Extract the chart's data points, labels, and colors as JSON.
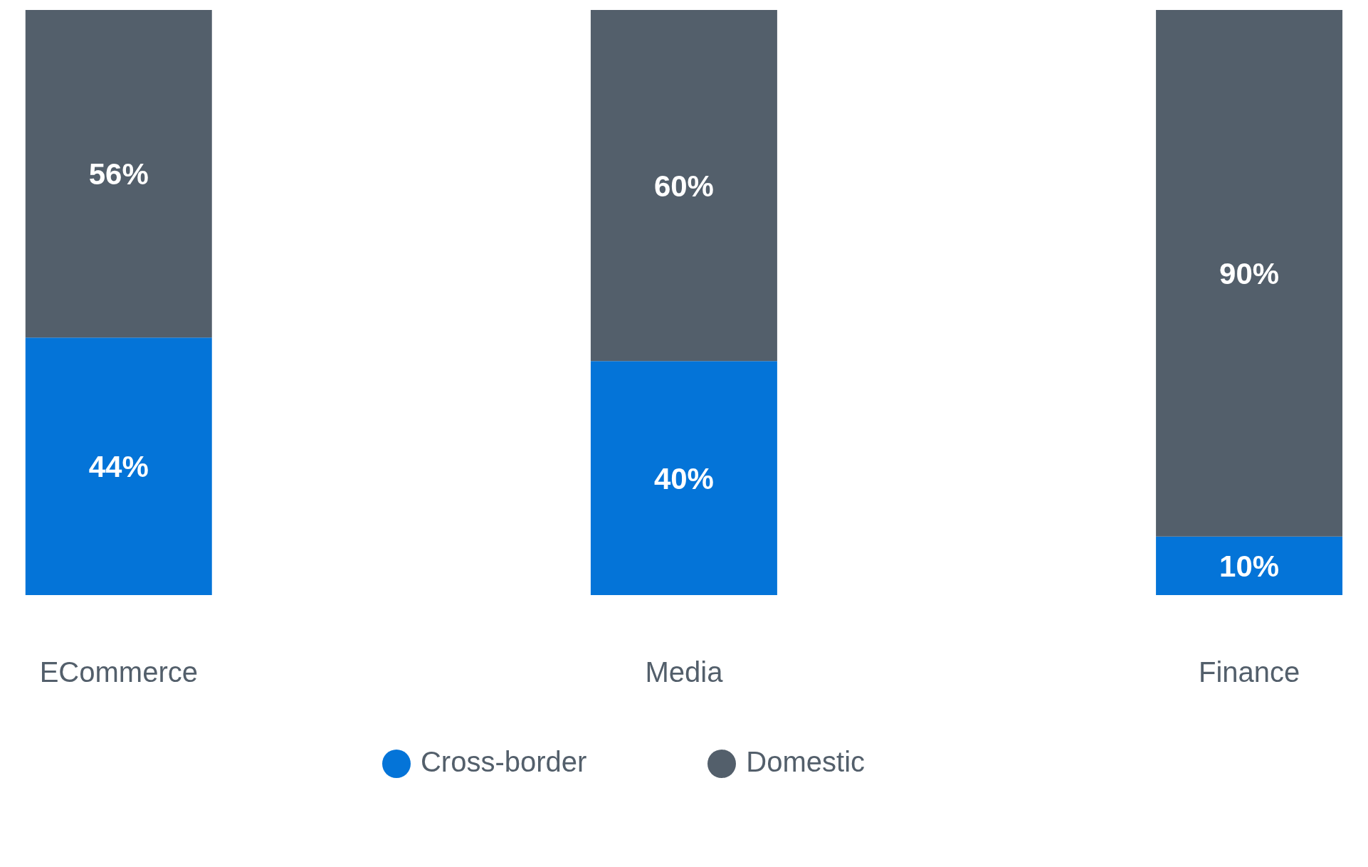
{
  "chart_data": {
    "type": "bar",
    "stacked": true,
    "categories": [
      "ECommerce",
      "Media",
      "Finance"
    ],
    "legend": "bottom",
    "series": [
      {
        "name": "Cross-border",
        "color": "#0474d8",
        "values": [
          44,
          40,
          10
        ],
        "value_labels": [
          "44%",
          "40%",
          "10%"
        ]
      },
      {
        "name": "Domestic",
        "color": "#535f6b",
        "values": [
          56,
          60,
          90
        ],
        "value_labels": [
          "56%",
          "60%",
          "90%"
        ]
      }
    ]
  }
}
